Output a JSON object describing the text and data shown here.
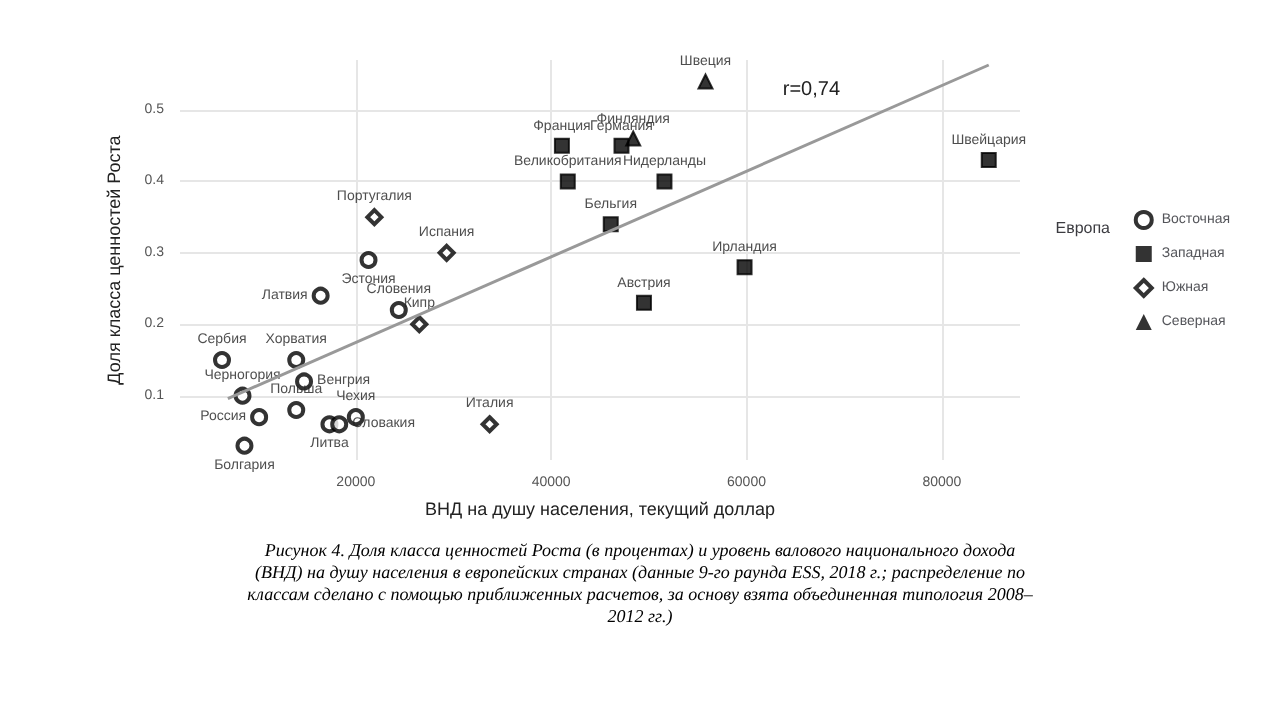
{
  "chart_data": {
    "type": "scatter",
    "xlabel": "ВНД на душу населения, текущий доллар",
    "ylabel": "Доля класса ценностей Роста",
    "legend_title": "Европа",
    "xlim": [
      2000,
      88000
    ],
    "ylim": [
      0.01,
      0.57
    ],
    "xticks": [
      20000,
      40000,
      60000,
      80000
    ],
    "yticks": [
      0.1,
      0.2,
      0.3,
      0.4,
      0.5
    ],
    "grid": true,
    "legend": "right",
    "series": [
      {
        "name": "Восточная",
        "color": "#000000",
        "marker": "circle",
        "x": [
          21300,
          16400,
          24400,
          13900,
          6300,
          14700,
          8400,
          13900,
          10100,
          8600,
          17300,
          18300,
          20000
        ],
        "values": [
          0.29,
          0.24,
          0.22,
          0.15,
          0.15,
          0.12,
          0.1,
          0.08,
          0.07,
          0.03,
          0.06,
          0.06,
          0.07
        ],
        "value_labels": [
          "Эстония",
          "Латвия",
          "Словения",
          "Хорватия",
          "Сербия",
          "Венгрия",
          "Черногория",
          "Польша",
          "Россия",
          "Болгария",
          "Литва",
          "Словакия",
          "Чехия"
        ]
      },
      {
        "name": "Западная",
        "color": "#000000",
        "marker": "square",
        "x": [
          41100,
          47200,
          41700,
          51600,
          46100,
          59800,
          49500,
          84800
        ],
        "values": [
          0.45,
          0.45,
          0.4,
          0.4,
          0.34,
          0.28,
          0.23,
          0.43
        ],
        "value_labels": [
          "Франция",
          "Германия",
          "Великобритания",
          "Нидерланды",
          "Бельгия",
          "Ирландия",
          "Австрия",
          "Швейцария"
        ]
      },
      {
        "name": "Южная",
        "color": "#000000",
        "marker": "diamond",
        "x": [
          21900,
          29300,
          26500,
          33700
        ],
        "values": [
          0.35,
          0.3,
          0.2,
          0.06
        ],
        "value_labels": [
          "Португалия",
          "Испания",
          "Кипр",
          "Италия"
        ]
      },
      {
        "name": "Северная",
        "color": "#000000",
        "marker": "triangle",
        "x": [
          48400,
          55800
        ],
        "values": [
          0.46,
          0.54
        ],
        "value_labels": [
          "Финляндия",
          "Швеция"
        ]
      },
      {
        "type": "line",
        "color": "#999999",
        "marker": "none",
        "x": [
          6900,
          84800
        ],
        "values": [
          0.096,
          0.563
        ]
      }
    ],
    "annotations": [
      "r=0,74",
      "Рисунок 4. Доля класса ценностей Роста (в процентах) и уровень валового национального дохода (ВНД) на душу населения в европейских странах (данные 9-го раунда ESS, 2018 г.; распределение по классам сделано с помощью приближенных расчетов, за основу взята объединенная типология 2008–2012 гг.)"
    ]
  }
}
